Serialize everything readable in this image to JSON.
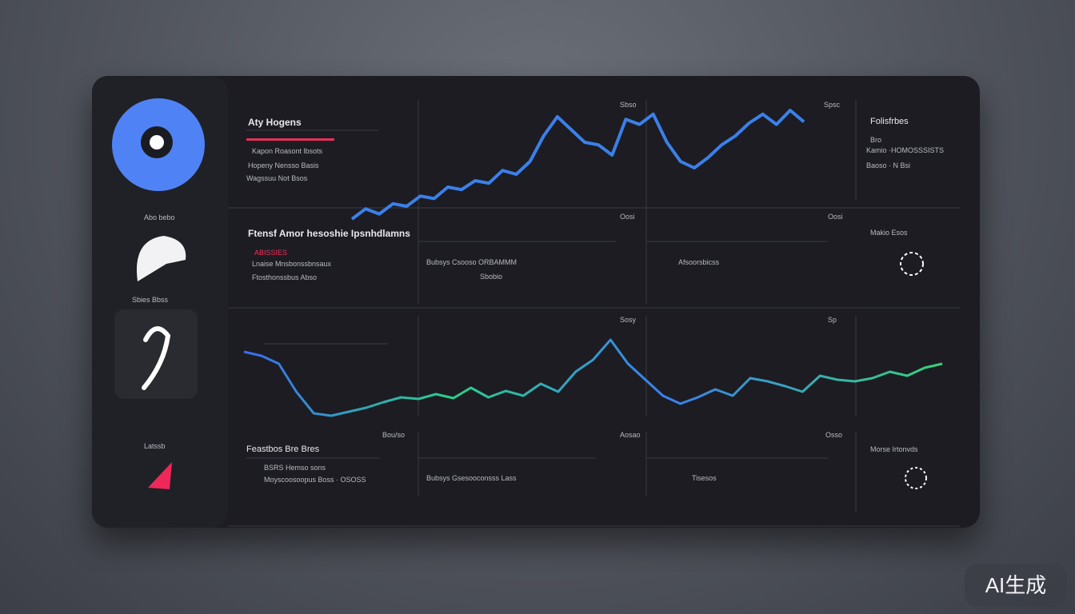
{
  "header": {
    "title": "Aty Hogens",
    "lines": [
      "Kapon Roasont lbsots",
      "Hopeny Nensso Basis",
      "Wagssuu Not Bsos"
    ]
  },
  "sidebar": {
    "labels": [
      "Abo bebo",
      "Sbies Bbss",
      "Latssb"
    ]
  },
  "top_panel": {
    "tags": [
      "Sbso",
      "Spsc"
    ],
    "side_title": "Folisfrbes",
    "side_lines": [
      "Bro",
      "Kamio ·HOMOSSSISTS",
      "Baoso · N Bsi"
    ]
  },
  "price_chart": {
    "values": [
      10,
      18,
      14,
      22,
      20,
      28,
      26,
      35,
      33,
      40,
      38,
      48,
      45,
      55,
      75,
      90,
      80,
      70,
      68,
      60,
      88,
      84,
      92,
      70,
      55,
      50,
      58,
      68,
      75,
      85,
      92,
      84,
      95,
      86
    ]
  },
  "mid_panel": {
    "title": "Ftensf Amor hesoshie Ipsnhdlamns",
    "alert": "ABISSIES",
    "lines": [
      "Lnaise Mnsbonssbnsaux",
      "Ftosthonssbus Abso"
    ],
    "tags": [
      "Oosi",
      "Oosi"
    ],
    "metric_a": "Bubsys Csooso ORBAMMM",
    "metric_a_sub": "Sbobio",
    "metric_b": "Afsoorsbicss",
    "side_title": "Makio Esos"
  },
  "flow_chart": {
    "tags": [
      "Sosy",
      "Sp"
    ],
    "values": [
      85,
      80,
      70,
      35,
      8,
      5,
      10,
      15,
      22,
      28,
      26,
      32,
      27,
      40,
      28,
      36,
      30,
      45,
      35,
      60,
      75,
      100,
      70,
      50,
      30,
      20,
      28,
      38,
      30,
      52,
      48,
      42,
      35,
      55,
      50,
      48,
      52,
      60,
      55,
      65,
      70
    ]
  },
  "bottom_panel": {
    "title": "Feastbos Bre Bres",
    "lines": [
      "BSRS Hemso sons",
      "Moyscoosoopus Boss · OSOSS"
    ],
    "tags": [
      "Bou/so",
      "Aosao",
      "Osso"
    ],
    "metric_a": "Bubsys Gsesooconsss Lass",
    "metric_b": "Tisesos",
    "side_title": "Morse Irtonvds"
  },
  "watermark": "AI生成"
}
